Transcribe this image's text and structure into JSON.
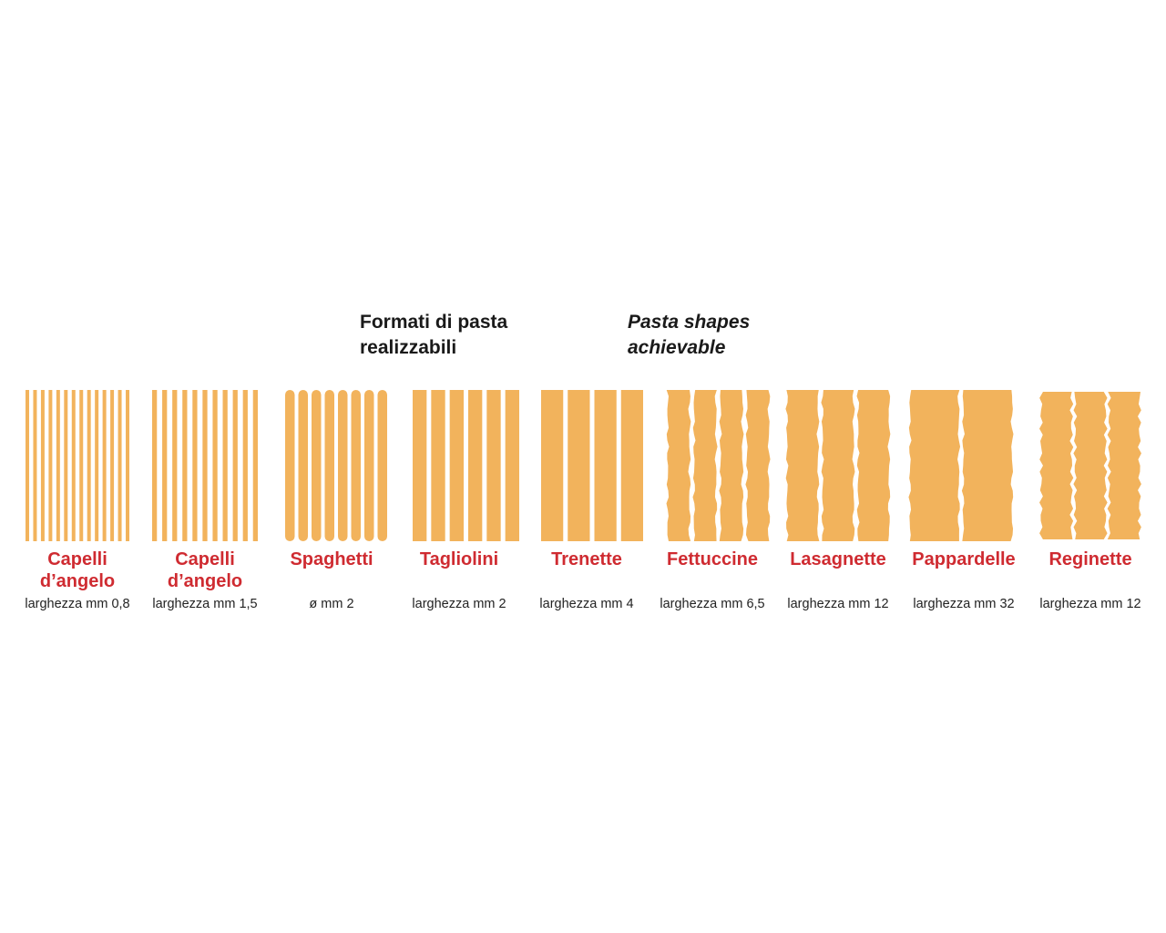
{
  "heading": {
    "italian": [
      "Formati di pasta",
      "realizzabili"
    ],
    "english": [
      "Pasta shapes",
      "achievable"
    ]
  },
  "colors": {
    "pasta": "#f2b35c",
    "name": "#cf2b31",
    "text": "#1a1a1a"
  },
  "shapes": [
    {
      "id": "capelli-08",
      "name": [
        "Capelli",
        "d’angelo"
      ],
      "width_label": "larghezza mm 0,8",
      "strands": 14,
      "edge": "straight"
    },
    {
      "id": "capelli-15",
      "name": [
        "Capelli",
        "d’angelo"
      ],
      "width_label": "larghezza mm 1,5",
      "strands": 11,
      "edge": "straight"
    },
    {
      "id": "spaghetti",
      "name": [
        "Spaghetti"
      ],
      "width_label": "ø mm 2",
      "strands": 8,
      "edge": "rounded"
    },
    {
      "id": "tagliolini",
      "name": [
        "Tagliolini"
      ],
      "width_label": "larghezza mm 2",
      "strands": 6,
      "edge": "straight"
    },
    {
      "id": "trenette",
      "name": [
        "Trenette"
      ],
      "width_label": "larghezza mm 4",
      "strands": 4,
      "edge": "straight"
    },
    {
      "id": "fettuccine",
      "name": [
        "Fettuccine"
      ],
      "width_label": "larghezza mm 6,5",
      "strands": 4,
      "edge": "rough"
    },
    {
      "id": "lasagnette",
      "name": [
        "Lasagnette"
      ],
      "width_label": "larghezza mm 12",
      "strands": 3,
      "edge": "rough"
    },
    {
      "id": "pappardelle",
      "name": [
        "Pappardelle"
      ],
      "width_label": "larghezza mm 32",
      "strands": 2,
      "edge": "rough"
    },
    {
      "id": "reginette",
      "name": [
        "Reginette"
      ],
      "width_label": "larghezza mm 12",
      "strands": 3,
      "edge": "wavy"
    }
  ]
}
